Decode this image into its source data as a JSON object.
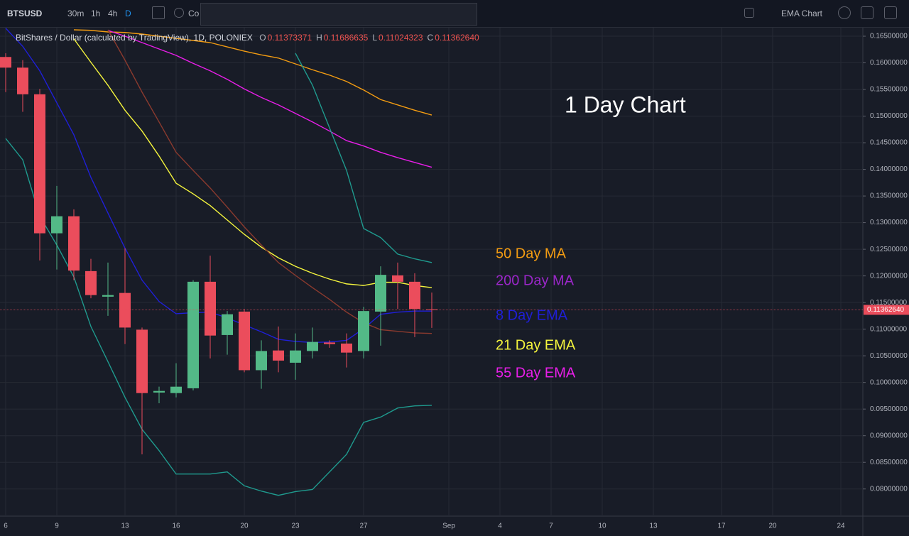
{
  "toolbar": {
    "symbol": "BTSUSD",
    "intervals": [
      "30m",
      "1h",
      "4h",
      "D"
    ],
    "compare": "Co",
    "layout_name": "EMA Chart"
  },
  "chart_data": {
    "type": "candlestick",
    "header": "BitShares / Dollar (calculated by TradingView), 1D, POLONIEX",
    "legend_values": [
      {
        "key": "O",
        "label": "0.11373371"
      },
      {
        "key": "H",
        "label": "0.11686635"
      },
      {
        "key": "L",
        "label": "0.11024323"
      },
      {
        "key": "C",
        "label": "0.11362640"
      }
    ],
    "categories": [
      "6",
      null,
      null,
      "9",
      null,
      null,
      null,
      "13",
      null,
      null,
      "16",
      null,
      null,
      null,
      "20",
      null,
      null,
      "23",
      null,
      null,
      null,
      "27",
      null,
      null,
      null,
      null,
      "Sep",
      null,
      null,
      "4",
      null,
      null,
      "7",
      null,
      null,
      "10",
      null,
      null,
      "13",
      null,
      null,
      null,
      "17",
      null,
      null,
      "20",
      null,
      null,
      null,
      "24",
      null
    ],
    "open": [
      0.1611,
      0.1591,
      0.1541,
      0.128,
      0.1312,
      0.1209,
      0.1161,
      0.1168,
      0.1099,
      0.0981,
      0.098,
      0.0989,
      0.1189,
      0.1089,
      0.1133,
      0.1023,
      0.106,
      0.1037,
      0.1059,
      0.1075,
      0.1073,
      0.1059,
      0.1133,
      0.1201,
      0.1189,
      0.11373371,
      null,
      null,
      null,
      null,
      null,
      null,
      null,
      null,
      null,
      null,
      null,
      null,
      null,
      null,
      null,
      null,
      null,
      null,
      null,
      null,
      null,
      null,
      null,
      null,
      null
    ],
    "high": [
      0.1618,
      0.1605,
      0.1551,
      0.1369,
      0.1325,
      0.1232,
      0.1225,
      0.1252,
      0.1103,
      0.0992,
      0.1036,
      0.1192,
      0.1238,
      0.1134,
      0.1138,
      0.1079,
      0.1105,
      0.1092,
      0.1103,
      0.1079,
      0.1092,
      0.1142,
      0.1218,
      0.1225,
      0.1205,
      0.11686635,
      null,
      null,
      null,
      null,
      null,
      null,
      null,
      null,
      null,
      null,
      null,
      null,
      null,
      null,
      null,
      null,
      null,
      null,
      null,
      null,
      null,
      null,
      null,
      null,
      null
    ],
    "low": [
      0.1545,
      0.1508,
      0.1229,
      0.1212,
      0.1192,
      0.1158,
      0.1125,
      0.1072,
      0.0865,
      0.0961,
      0.0972,
      0.0985,
      0.1045,
      0.1052,
      0.1019,
      0.0988,
      0.1019,
      0.1005,
      0.1045,
      0.1065,
      0.1028,
      0.1045,
      0.1069,
      0.1138,
      0.1085,
      0.11024323,
      null,
      null,
      null,
      null,
      null,
      null,
      null,
      null,
      null,
      null,
      null,
      null,
      null,
      null,
      null,
      null,
      null,
      null,
      null,
      null,
      null,
      null,
      null,
      null,
      null
    ],
    "close": [
      0.1591,
      0.1541,
      0.128,
      0.1312,
      0.121,
      0.1164,
      0.1164,
      0.1103,
      0.098,
      0.0984,
      0.0992,
      0.1189,
      0.1088,
      0.1128,
      0.1023,
      0.1059,
      0.1041,
      0.106,
      0.1076,
      0.1072,
      0.1056,
      0.1134,
      0.1202,
      0.1189,
      0.1138,
      0.1136264,
      null,
      null,
      null,
      null,
      null,
      null,
      null,
      null,
      null,
      null,
      null,
      null,
      null,
      null,
      null,
      null,
      null,
      null,
      null,
      null,
      null,
      null,
      null,
      null,
      null
    ],
    "up_color": "#53b987",
    "down_color": "#eb4d5c",
    "series": [
      {
        "color": "#f39c12",
        "values": [
          null,
          null,
          null,
          null,
          0.1662,
          0.1661,
          0.1658,
          0.1657,
          0.1654,
          0.165,
          0.1646,
          0.1642,
          0.1638,
          0.163,
          0.1622,
          0.1615,
          0.1609,
          0.1598,
          0.1587,
          0.1577,
          0.1565,
          0.1549,
          0.1531,
          0.1521,
          0.1511,
          0.1502,
          null,
          null,
          null,
          null,
          null,
          null,
          null,
          null,
          null,
          null,
          null,
          null,
          null,
          null,
          null,
          null,
          null,
          null,
          null,
          null,
          null,
          null,
          null,
          null,
          null
        ]
      },
      {
        "color": "#e91ee9",
        "values": [
          null,
          null,
          null,
          null,
          null,
          null,
          0.1661,
          0.165,
          0.1638,
          0.1626,
          0.1614,
          0.1599,
          0.1585,
          0.1569,
          0.1551,
          0.1535,
          0.1521,
          0.1505,
          0.1489,
          0.1472,
          0.1454,
          0.1444,
          0.1432,
          0.1422,
          0.1413,
          0.1404,
          null,
          null,
          null,
          null,
          null,
          null,
          null,
          null,
          null,
          null,
          null,
          null,
          null,
          null,
          null,
          null,
          null,
          null,
          null,
          null,
          null,
          null,
          null,
          null,
          null
        ]
      },
      {
        "color": "#f5f53d",
        "values": [
          null,
          null,
          null,
          null,
          0.1645,
          0.1601,
          0.1558,
          0.1511,
          0.1472,
          0.1425,
          0.1374,
          0.1354,
          0.1332,
          0.1305,
          0.1278,
          0.1254,
          0.1234,
          0.1218,
          0.1205,
          0.1194,
          0.1185,
          0.1182,
          0.1188,
          0.1188,
          0.1182,
          0.1178,
          null,
          null,
          null,
          null,
          null,
          null,
          null,
          null,
          null,
          null,
          null,
          null,
          null,
          null,
          null,
          null,
          null,
          null,
          null,
          null,
          null,
          null,
          null,
          null,
          null
        ]
      },
      {
        "color": "#1f1fd8",
        "values": [
          0.1665,
          0.1631,
          0.1585,
          0.1525,
          0.1465,
          0.1385,
          0.1318,
          0.1252,
          0.1192,
          0.1152,
          0.1129,
          0.1131,
          0.1132,
          0.1121,
          0.1108,
          0.1095,
          0.1081,
          0.1077,
          0.1075,
          0.1076,
          0.1079,
          0.1101,
          0.1128,
          0.1132,
          0.1134,
          0.1134,
          null,
          null,
          null,
          null,
          null,
          null,
          null,
          null,
          null,
          null,
          null,
          null,
          null,
          null,
          null,
          null,
          null,
          null,
          null,
          null,
          null,
          null,
          null,
          null,
          null
        ]
      },
      {
        "color": "#8b3a2e",
        "values": [
          null,
          null,
          null,
          null,
          null,
          null,
          0.1662,
          0.1605,
          0.1545,
          0.1489,
          0.1432,
          0.1398,
          0.1365,
          0.1329,
          0.1292,
          0.1258,
          0.1225,
          0.1201,
          0.1178,
          0.1156,
          0.1132,
          0.1112,
          0.1099,
          0.1096,
          0.1093,
          0.1092,
          null,
          null,
          null,
          null,
          null,
          null,
          null,
          null,
          null,
          null,
          null,
          null,
          null,
          null,
          null,
          null,
          null,
          null,
          null,
          null,
          null,
          null,
          null,
          null,
          null
        ]
      },
      {
        "color": "#1f9a8e",
        "values": [
          null,
          null,
          null,
          null,
          null,
          null,
          null,
          null,
          null,
          null,
          null,
          null,
          null,
          null,
          null,
          null,
          null,
          0.1618,
          0.1558,
          0.1478,
          0.1398,
          0.1289,
          0.1272,
          0.1241,
          0.1232,
          0.1225,
          null,
          null,
          null,
          null,
          null,
          null,
          null,
          null,
          null,
          null,
          null,
          null,
          null,
          null,
          null,
          null,
          null,
          null,
          null,
          null,
          null,
          null,
          null,
          null,
          null
        ]
      },
      {
        "color": "#1f9a8e",
        "values": [
          0.1458,
          0.1418,
          0.1312,
          0.1258,
          0.1198,
          0.1105,
          0.1039,
          0.0972,
          0.0912,
          0.0872,
          0.0828,
          0.0828,
          0.0828,
          0.0832,
          0.0806,
          0.0796,
          0.0788,
          0.0795,
          0.0799,
          0.0832,
          0.0865,
          0.0925,
          0.0935,
          0.0952,
          0.0956,
          0.0957,
          null,
          null,
          null,
          null,
          null,
          null,
          null,
          null,
          null,
          null,
          null,
          null,
          null,
          null,
          null,
          null,
          null,
          null,
          null,
          null,
          null,
          null,
          null,
          null,
          null
        ]
      }
    ],
    "annotations": [
      {
        "text": "1 Day Chart",
        "color": "#ffffff"
      },
      {
        "text": "50 Day MA",
        "color": "#f39c12"
      },
      {
        "text": "200 Day MA",
        "color": "#9b27c9"
      },
      {
        "text": "8 Day EMA",
        "color": "#1f1fd8"
      },
      {
        "text": "21 Day EMA",
        "color": "#f5f53d"
      },
      {
        "text": "55 Day EMA",
        "color": "#e91ee9"
      }
    ],
    "ylim": [
      0.0749,
      0.1662
    ],
    "yticks": [
      {
        "value": 0.08,
        "label": "0.08000000"
      },
      {
        "value": 0.085,
        "label": "0.08500000"
      },
      {
        "value": 0.09,
        "label": "0.09000000"
      },
      {
        "value": 0.095,
        "label": "0.09500000"
      },
      {
        "value": 0.1,
        "label": "0.10000000"
      },
      {
        "value": 0.105,
        "label": "0.10500000"
      },
      {
        "value": 0.11,
        "label": "0.11000000"
      },
      {
        "value": 0.115,
        "label": "0.11500000"
      },
      {
        "value": 0.12,
        "label": "0.12000000"
      },
      {
        "value": 0.125,
        "label": "0.12500000"
      },
      {
        "value": 0.13,
        "label": "0.13000000"
      },
      {
        "value": 0.135,
        "label": "0.13500000"
      },
      {
        "value": 0.14,
        "label": "0.14000000"
      },
      {
        "value": 0.145,
        "label": "0.14500000"
      },
      {
        "value": 0.15,
        "label": "0.15000000"
      },
      {
        "value": 0.155,
        "label": "0.15500000"
      },
      {
        "value": 0.16,
        "label": "0.16000000"
      },
      {
        "value": 0.165,
        "label": "0.16500000"
      }
    ],
    "grid": true
  }
}
